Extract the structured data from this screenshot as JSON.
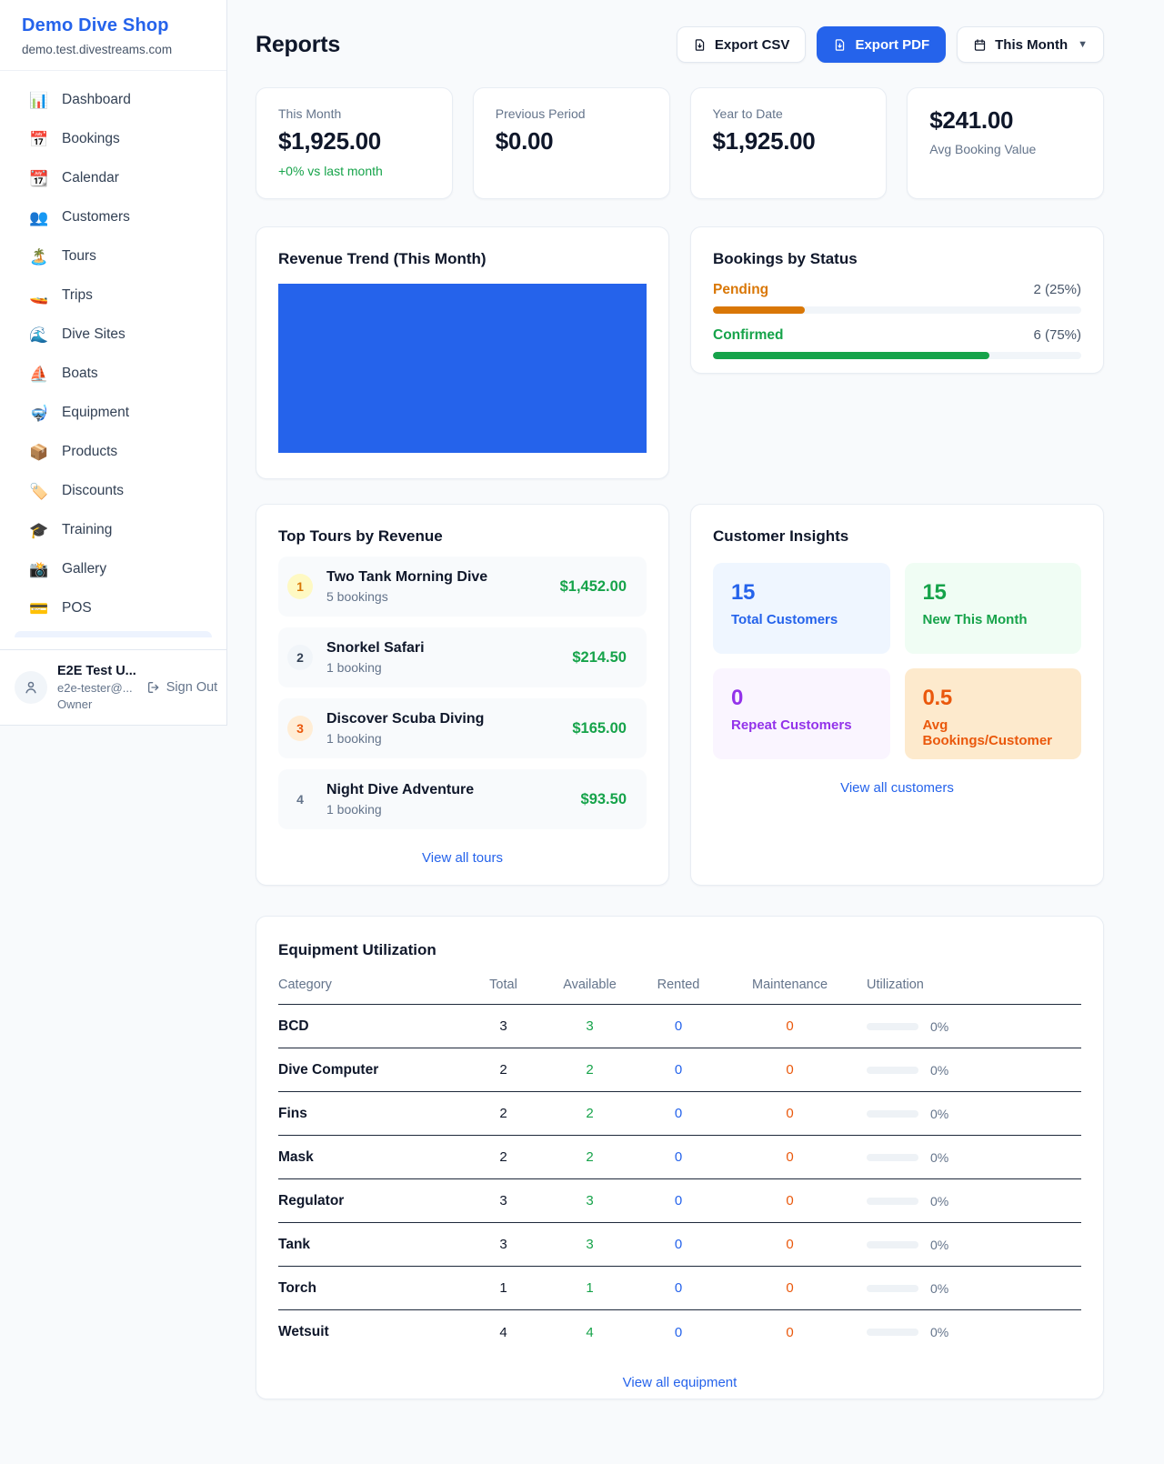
{
  "sidebar": {
    "shop_name": "Demo Dive Shop",
    "domain": "demo.test.divestreams.com",
    "items": [
      {
        "icon": "📊",
        "label": "Dashboard"
      },
      {
        "icon": "📅",
        "label": "Bookings"
      },
      {
        "icon": "📆",
        "label": "Calendar"
      },
      {
        "icon": "👥",
        "label": "Customers"
      },
      {
        "icon": "🏝️",
        "label": "Tours"
      },
      {
        "icon": "🚤",
        "label": "Trips"
      },
      {
        "icon": "🌊",
        "label": "Dive Sites"
      },
      {
        "icon": "⛵",
        "label": "Boats"
      },
      {
        "icon": "🤿",
        "label": "Equipment"
      },
      {
        "icon": "📦",
        "label": "Products"
      },
      {
        "icon": "🏷️",
        "label": "Discounts"
      },
      {
        "icon": "🎓",
        "label": "Training"
      },
      {
        "icon": "📸",
        "label": "Gallery"
      },
      {
        "icon": "💳",
        "label": "POS"
      }
    ],
    "user": {
      "name": "E2E Test U...",
      "email": "e2e-tester@...",
      "role": "Owner",
      "sign_out": "Sign Out"
    }
  },
  "header": {
    "title": "Reports",
    "export_csv": "Export CSV",
    "export_pdf": "Export PDF",
    "period": "This Month"
  },
  "stats": [
    {
      "label": "This Month",
      "value": "$1,925.00",
      "delta": "+0% vs last month"
    },
    {
      "label": "Previous Period",
      "value": "$0.00"
    },
    {
      "label": "Year to Date",
      "value": "$1,925.00"
    },
    {
      "label": "Avg Booking Value",
      "value": "$241.00"
    }
  ],
  "revenue_trend": {
    "title": "Revenue Trend (This Month)",
    "bar_color": "#2563eb",
    "note": "single full-width solid bar"
  },
  "bookings_by_status": {
    "title": "Bookings by Status",
    "rows": [
      {
        "label": "Pending",
        "value": "2 (25%)",
        "pct": 25,
        "color": "#d97706"
      },
      {
        "label": "Confirmed",
        "value": "6 (75%)",
        "pct": 75,
        "color": "#16a34a"
      }
    ]
  },
  "top_tours": {
    "title": "Top Tours by Revenue",
    "rows": [
      {
        "rank": "1",
        "name": "Two Tank Morning Dive",
        "bookings": "5 bookings",
        "revenue": "$1,452.00"
      },
      {
        "rank": "2",
        "name": "Snorkel Safari",
        "bookings": "1 booking",
        "revenue": "$214.50"
      },
      {
        "rank": "3",
        "name": "Discover Scuba Diving",
        "bookings": "1 booking",
        "revenue": "$165.00"
      },
      {
        "rank": "4",
        "name": "Night Dive Adventure",
        "bookings": "1 booking",
        "revenue": "$93.50"
      }
    ],
    "link": "View all tours"
  },
  "customer_insights": {
    "title": "Customer Insights",
    "tiles": [
      {
        "value": "15",
        "label": "Total Customers",
        "color": "#2563eb"
      },
      {
        "value": "15",
        "label": "New This Month",
        "color": "#16a34a"
      },
      {
        "value": "0",
        "label": "Repeat Customers",
        "color": "#9333ea"
      },
      {
        "value": "0.5",
        "label": "Avg Bookings/Customer",
        "color": "#ea580c"
      }
    ],
    "link": "View all customers"
  },
  "equipment": {
    "title": "Equipment Utilization",
    "columns": [
      "Category",
      "Total",
      "Available",
      "Rented",
      "Maintenance",
      "Utilization"
    ],
    "rows": [
      {
        "category": "BCD",
        "total": "3",
        "available": "3",
        "rented": "0",
        "maintenance": "0",
        "utilization": "0%"
      },
      {
        "category": "Dive Computer",
        "total": "2",
        "available": "2",
        "rented": "0",
        "maintenance": "0",
        "utilization": "0%"
      },
      {
        "category": "Fins",
        "total": "2",
        "available": "2",
        "rented": "0",
        "maintenance": "0",
        "utilization": "0%"
      },
      {
        "category": "Mask",
        "total": "2",
        "available": "2",
        "rented": "0",
        "maintenance": "0",
        "utilization": "0%"
      },
      {
        "category": "Regulator",
        "total": "3",
        "available": "3",
        "rented": "0",
        "maintenance": "0",
        "utilization": "0%"
      },
      {
        "category": "Tank",
        "total": "3",
        "available": "3",
        "rented": "0",
        "maintenance": "0",
        "utilization": "0%"
      },
      {
        "category": "Torch",
        "total": "1",
        "available": "1",
        "rented": "0",
        "maintenance": "0",
        "utilization": "0%"
      },
      {
        "category": "Wetsuit",
        "total": "4",
        "available": "4",
        "rented": "0",
        "maintenance": "0",
        "utilization": "0%"
      }
    ],
    "link": "View all equipment"
  }
}
